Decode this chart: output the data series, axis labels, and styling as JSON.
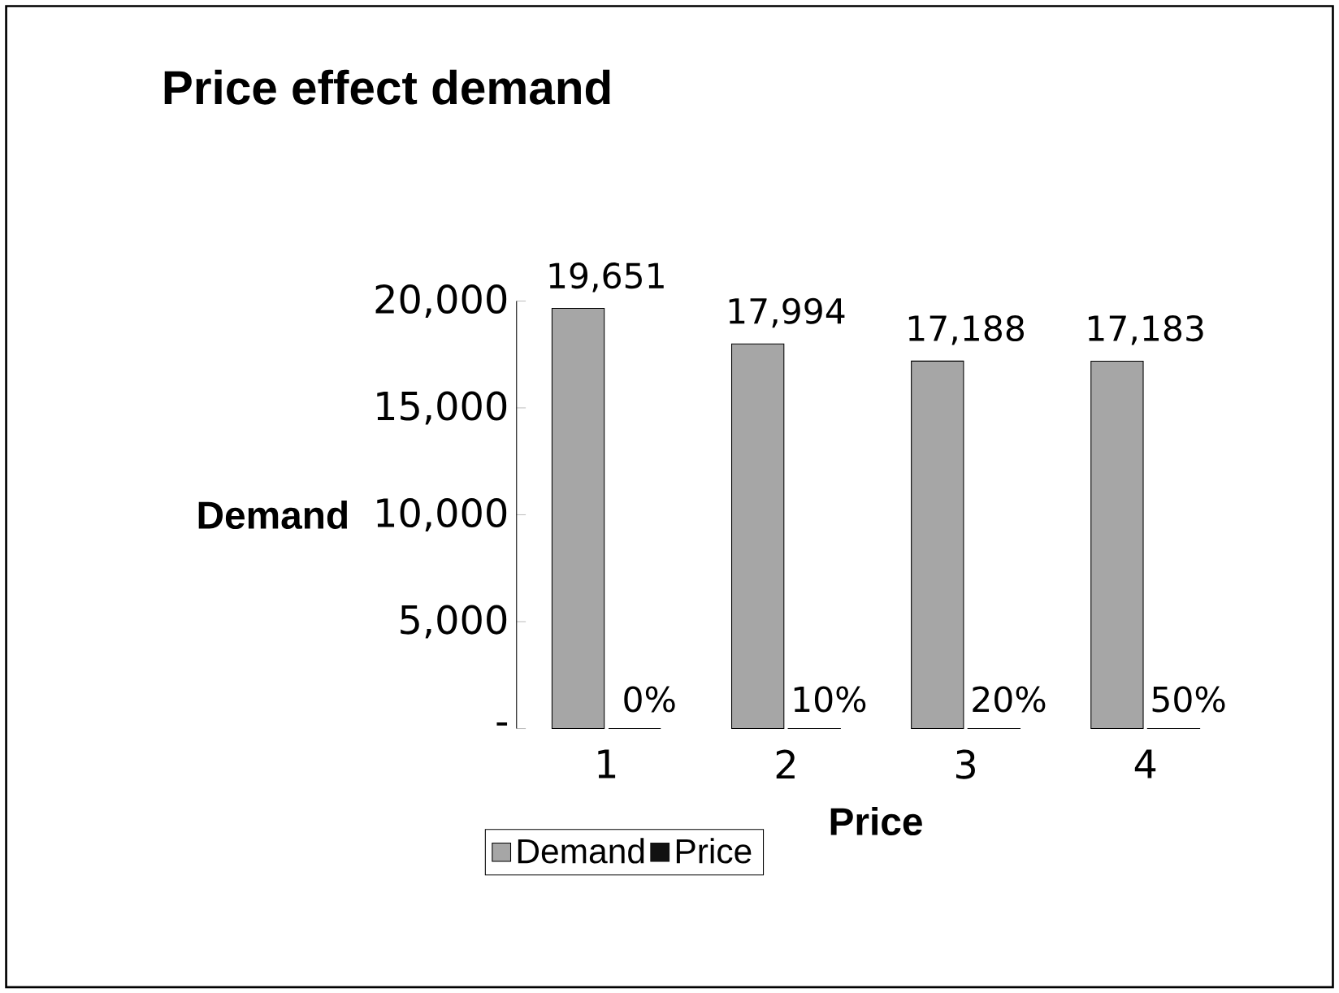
{
  "chart_data": {
    "type": "bar",
    "title": "Price effect demand",
    "xlabel": "Price",
    "ylabel": "Demand",
    "categories": [
      "1",
      "2",
      "3",
      "4"
    ],
    "series": [
      {
        "name": "Demand",
        "color": "#a6a6a6",
        "values": [
          19651,
          17994,
          17188,
          17183
        ],
        "value_labels": [
          "19,651",
          "17,994",
          "17,188",
          "17,183"
        ]
      },
      {
        "name": "Price",
        "color": "#111111",
        "values": [
          0,
          0.1,
          0.2,
          0.5
        ],
        "value_labels": [
          "0%",
          "10%",
          "20%",
          "50%"
        ]
      }
    ],
    "ylim": [
      0,
      20000
    ],
    "yticks": [
      {
        "value": 0,
        "label": "-"
      },
      {
        "value": 5000,
        "label": "5,000"
      },
      {
        "value": 10000,
        "label": "10,000"
      },
      {
        "value": 15000,
        "label": "15,000"
      },
      {
        "value": 20000,
        "label": "20,000"
      }
    ],
    "legend": "bottom"
  }
}
